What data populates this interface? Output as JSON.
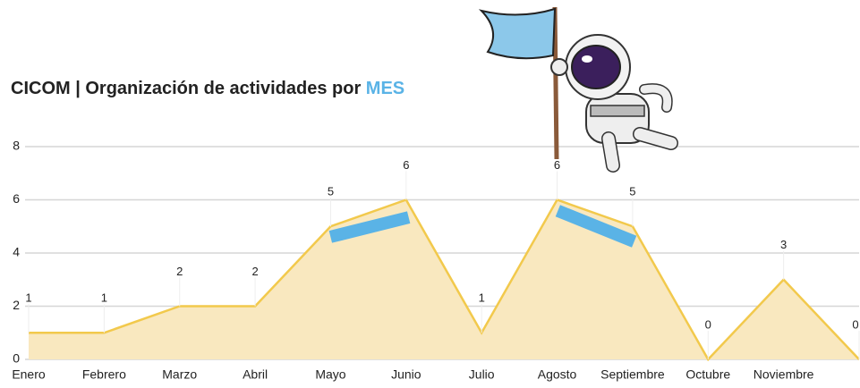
{
  "chart_data": {
    "type": "area",
    "title": "CICOM | Organización de actividades por",
    "title_highlight": "MES",
    "categories": [
      "Enero",
      "Febrero",
      "Marzo",
      "Abril",
      "Mayo",
      "Junio",
      "Julio",
      "Agosto",
      "Septiembre",
      "Octubre",
      "Noviembre",
      null
    ],
    "values": [
      1,
      1,
      2,
      2,
      5,
      6,
      1,
      6,
      5,
      0,
      3,
      0
    ],
    "color": "#f2c94c",
    "fill": "#f9e8bf",
    "label_color": "#f2c14e",
    "highlight_color": "#5ab3e6",
    "ylim": [
      0,
      8
    ],
    "yticks": [
      0,
      2,
      4,
      6,
      8
    ],
    "grid": true
  }
}
